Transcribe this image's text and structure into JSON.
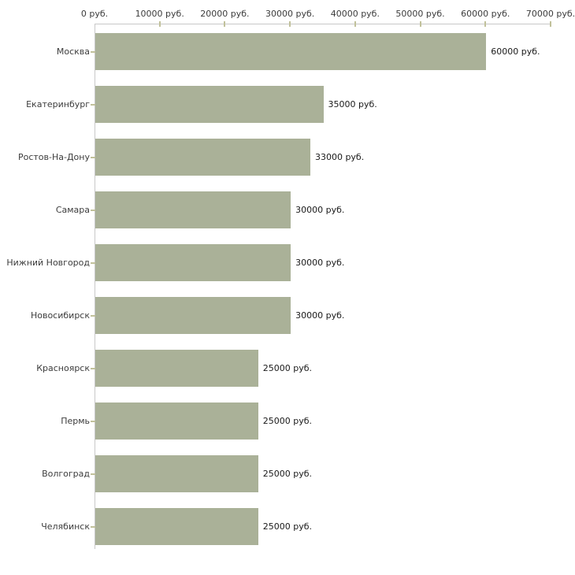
{
  "chart_data": {
    "type": "bar",
    "orientation": "horizontal",
    "title": "",
    "xlabel": "",
    "ylabel": "",
    "xlim": [
      0,
      70000
    ],
    "grid": "off",
    "legend": "none",
    "unit": "руб.",
    "x_tick_values": [
      0,
      10000,
      20000,
      30000,
      40000,
      50000,
      60000,
      70000
    ],
    "x_tick_labels": [
      "0 руб.",
      "10000 руб.",
      "20000 руб.",
      "30000 руб.",
      "40000 руб.",
      "50000 руб.",
      "60000 руб.",
      "70000 руб."
    ],
    "categories": [
      "Москва",
      "Екатеринбург",
      "Ростов-На-Дону",
      "Самара",
      "Нижний Новгород",
      "Новосибирск",
      "Красноярск",
      "Пермь",
      "Волгоград",
      "Челябинск"
    ],
    "values": [
      60000,
      35000,
      33000,
      30000,
      30000,
      30000,
      25000,
      25000,
      25000,
      25000
    ],
    "value_labels": [
      "60000 руб.",
      "35000 руб.",
      "33000 руб.",
      "30000 руб.",
      "30000 руб.",
      "30000 руб.",
      "25000 руб.",
      "25000 руб.",
      "25000 руб.",
      "25000 руб."
    ],
    "colors": {
      "bar_fill": "#aab198",
      "axis_line": "#c8c8c8",
      "tick_mark": "#c1c19b",
      "label_text": "#3c3c3c",
      "value_text": "#1a1a1a",
      "background": "#ffffff"
    }
  }
}
